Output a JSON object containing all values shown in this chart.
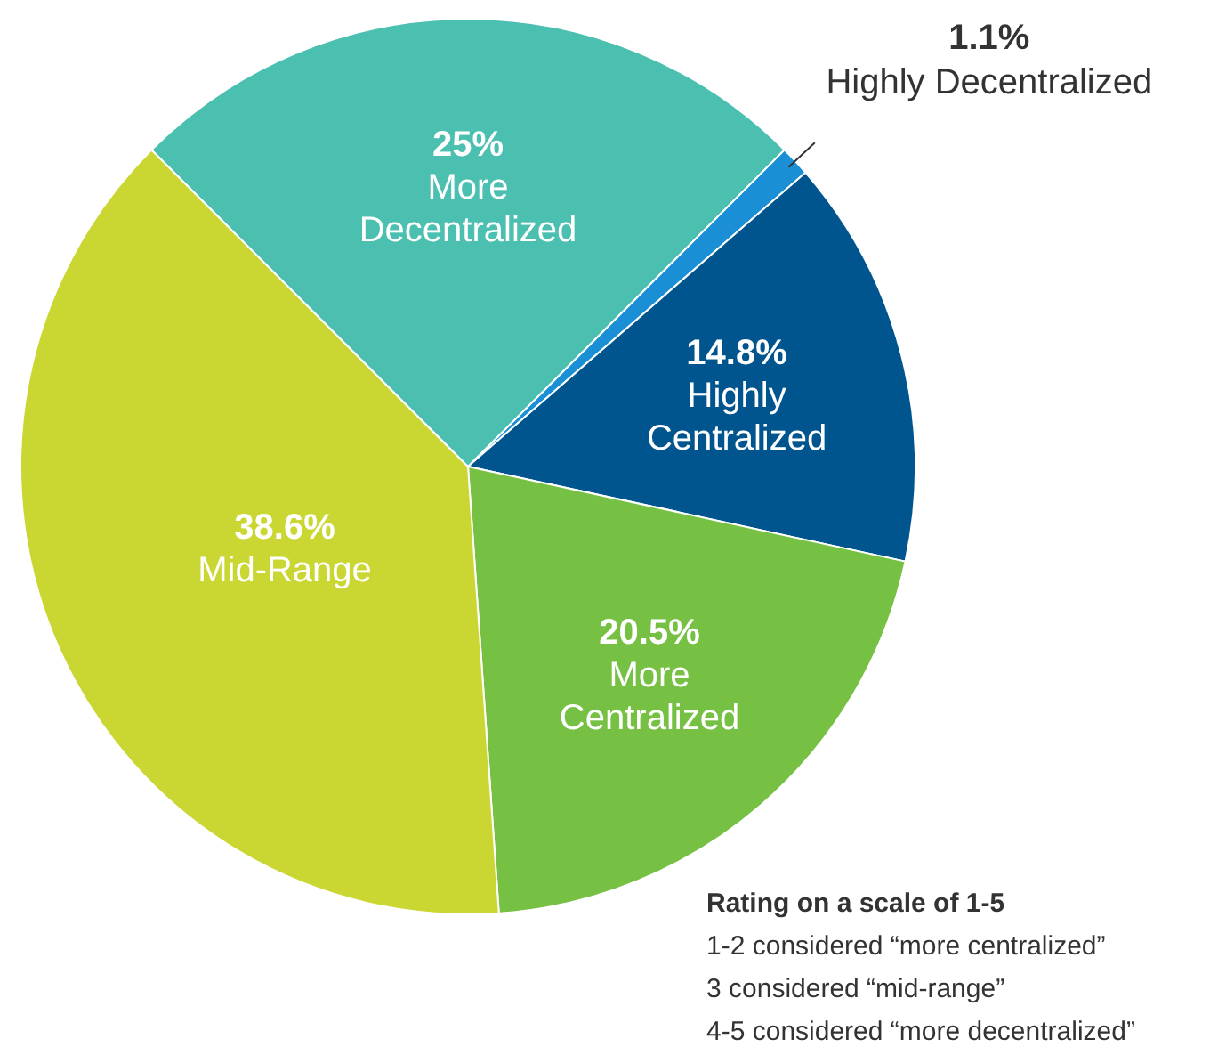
{
  "chart_data": {
    "type": "pie",
    "categories": [
      "Highly Decentralized",
      "Highly Centralized",
      "More Centralized",
      "Mid-Range",
      "More Decentralized"
    ],
    "values": [
      1.1,
      14.8,
      20.5,
      38.6,
      25
    ],
    "colors": [
      "#1b8fd6",
      "#00558f",
      "#76c043",
      "#cad733",
      "#4bbfb0"
    ],
    "legend": false,
    "value_labels": [
      "1.1%",
      "14.8%",
      "20.5%",
      "38.6%",
      "25%"
    ],
    "annotations": [
      "Rating on a scale of 1-5",
      "1-2 considered “more centralized”",
      "3 considered “mid-range”",
      "4-5 considered “more decentralized”"
    ]
  }
}
